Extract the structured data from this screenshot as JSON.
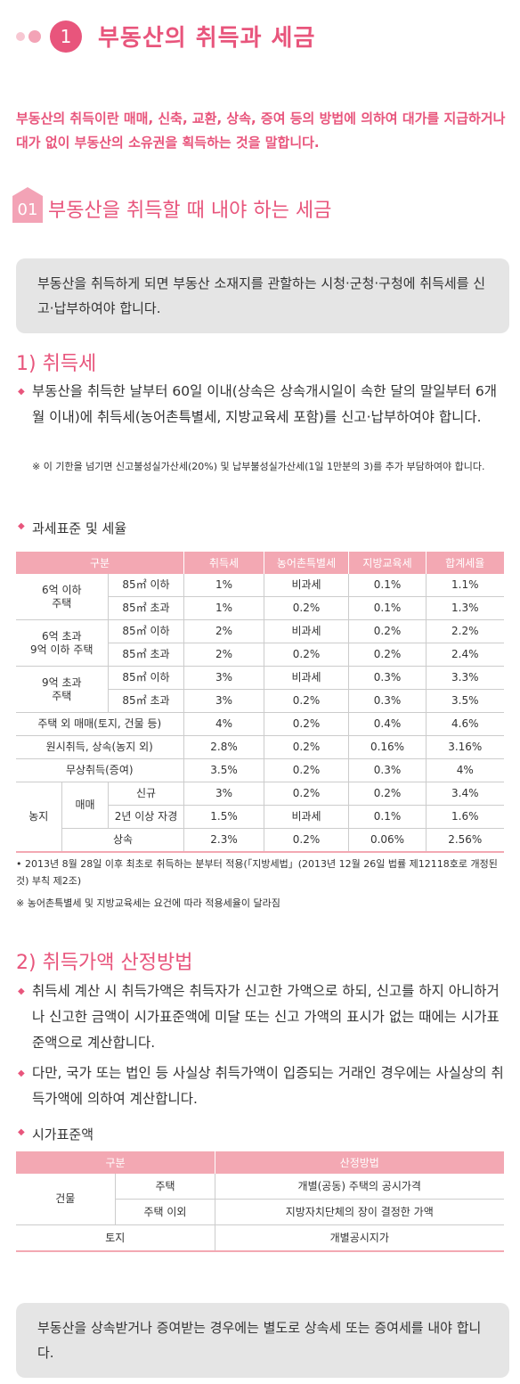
{
  "header": {
    "number": "1",
    "title": "부동산의 취득과 세금"
  },
  "intro": "부동산의 취득이란 매매, 신축, 교환, 상속, 증여 등의 방법에 의하여 대가를 지급하거나 대가 없이 부동산의 소유권을 획득하는 것을 말합니다.",
  "section": {
    "number": "01",
    "title": "부동산을 취득할 때 내야 하는 세금",
    "box": "부동산을 취득하게 되면 부동산 소재지를 관할하는 시청·군청·구청에 취득세를 신고·납부하여야 합니다."
  },
  "part1": {
    "title": "1) 취득세",
    "bullet": "부동산을 취득한 날부터 60일 이내(상속은 상속개시일이 속한 달의 말일부터 6개월 이내)에 취득세(농어촌특별세, 지방교육세 포함)를 신고·납부하여야 합니다.",
    "note": "※ 이 기한을 넘기면 신고불성실가산세(20%) 및 납부불성실가산세(1일 1만분의 3)를 추가 부담하여야 합니다.",
    "table_title": "과세표준 및 세율",
    "table": {
      "header": [
        "구분",
        "취득세",
        "농어촌특별세",
        "지방교육세",
        "합계세율"
      ],
      "rows": [
        [
          "6억 이하\n주택",
          "85㎡ 이하",
          "1%",
          "비과세",
          "0.1%",
          "1.1%"
        ],
        [
          "85㎡ 초과",
          "1%",
          "0.2%",
          "0.1%",
          "1.3%"
        ],
        [
          "6억 초과\n9억 이하 주택",
          "85㎡ 이하",
          "2%",
          "비과세",
          "0.2%",
          "2.2%"
        ],
        [
          "85㎡ 초과",
          "2%",
          "0.2%",
          "0.2%",
          "2.4%"
        ],
        [
          "9억 초과\n주택",
          "85㎡ 이하",
          "3%",
          "비과세",
          "0.3%",
          "3.3%"
        ],
        [
          "85㎡ 초과",
          "3%",
          "0.2%",
          "0.3%",
          "3.5%"
        ],
        [
          "주택 외 매매(토지, 건물 등)",
          "4%",
          "0.2%",
          "0.4%",
          "4.6%"
        ],
        [
          "원시취득, 상속(농지 외)",
          "2.8%",
          "0.2%",
          "0.16%",
          "3.16%"
        ],
        [
          "무상취득(증여)",
          "3.5%",
          "0.2%",
          "0.3%",
          "4%"
        ],
        [
          "농지",
          "매매",
          "신규",
          "3%",
          "0.2%",
          "0.2%",
          "3.4%"
        ],
        [
          "2년 이상 자경",
          "1.5%",
          "비과세",
          "0.1%",
          "1.6%"
        ],
        [
          "상속",
          "2.3%",
          "0.2%",
          "0.06%",
          "2.56%"
        ]
      ]
    },
    "footnotes": [
      "• 2013년 8월 28일 이후 최초로 취득하는 분부터 적용(「지방세법」(2013년 12월 26일 법률 제12118호로 개정된 것) 부칙 제2조)",
      "※ 농어촌특별세 및 지방교육세는 요건에 따라 적용세율이 달라짐"
    ]
  },
  "part2": {
    "title": "2) 취득가액 산정방법",
    "bullets": [
      "취득세 계산 시 취득가액은 취득자가 신고한 가액으로 하되, 신고를 하지 아니하거나 신고한 금액이 시가표준액에 미달 또는 신고 가액의 표시가 없는 때에는 시가표준액으로 계산합니다.",
      "다만, 국가 또는 법인 등 사실상 취득가액이 입증되는 거래인 경우에는 사실상의 취득가액에 의하여 계산합니다."
    ],
    "table_title": "시가표준액",
    "table": {
      "header": [
        "구분",
        "산정방법"
      ],
      "rows": [
        [
          "건물",
          "주택",
          "개별(공동) 주택의 공시가격"
        ],
        [
          "주택 이외",
          "지방자치단체의 장이 결정한 가액"
        ],
        [
          "토지",
          "개별공시지가"
        ]
      ]
    }
  },
  "closing": "부동산을 상속받거나 증여받는 경우에는 별도로 상속세 또는 증여세를 내야 합니다."
}
